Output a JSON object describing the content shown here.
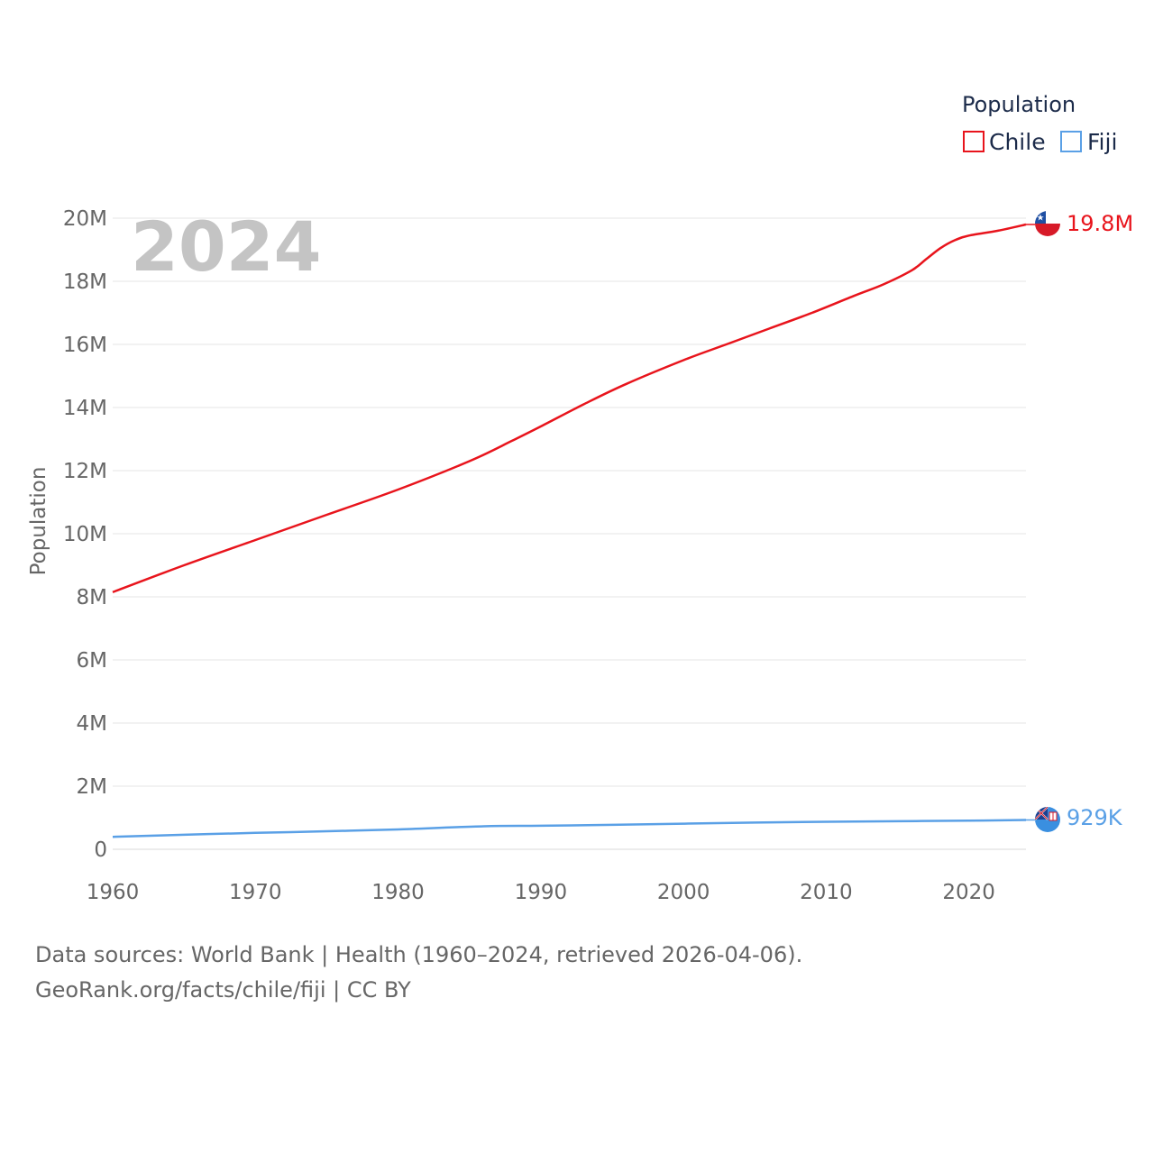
{
  "chart_data": {
    "type": "line",
    "title": "",
    "year_label": "2024",
    "ylabel": "Population",
    "xlabel": "",
    "xlim": [
      1960,
      2024
    ],
    "ylim": [
      0,
      20000000
    ],
    "x_ticks": [
      1960,
      1970,
      1980,
      1990,
      2000,
      2010,
      2020
    ],
    "y_ticks": [
      {
        "value": 0,
        "label": "0"
      },
      {
        "value": 2000000,
        "label": "2M"
      },
      {
        "value": 4000000,
        "label": "4M"
      },
      {
        "value": 6000000,
        "label": "6M"
      },
      {
        "value": 8000000,
        "label": "8M"
      },
      {
        "value": 10000000,
        "label": "10M"
      },
      {
        "value": 12000000,
        "label": "12M"
      },
      {
        "value": 14000000,
        "label": "14M"
      },
      {
        "value": 16000000,
        "label": "16M"
      },
      {
        "value": 18000000,
        "label": "18M"
      },
      {
        "value": 20000000,
        "label": "20M"
      }
    ],
    "grid": true,
    "legend": {
      "title": "Population",
      "position": "top-right"
    },
    "series": [
      {
        "name": "Chile",
        "color": "#e8141c",
        "end_label": "19.8M",
        "x": [
          1960,
          1965,
          1970,
          1975,
          1980,
          1985,
          1988,
          1990,
          1993,
          1996,
          2000,
          2003,
          2006,
          2009,
          2012,
          2014,
          2016,
          2017,
          2018,
          2019,
          2020,
          2022,
          2024
        ],
        "values": [
          8150000,
          9000000,
          9800000,
          10600000,
          11400000,
          12300000,
          12950000,
          13400000,
          14100000,
          14750000,
          15500000,
          16000000,
          16500000,
          17000000,
          17550000,
          17900000,
          18350000,
          18700000,
          19050000,
          19300000,
          19450000,
          19600000,
          19800000
        ]
      },
      {
        "name": "Fiji",
        "color": "#5aa0e6",
        "end_label": "929K",
        "x": [
          1960,
          1965,
          1970,
          1975,
          1980,
          1986,
          1990,
          1995,
          2000,
          2005,
          2010,
          2015,
          2020,
          2024
        ],
        "values": [
          394000,
          460000,
          520000,
          570000,
          630000,
          730000,
          745000,
          775000,
          812000,
          845000,
          870000,
          890000,
          905000,
          929000
        ]
      }
    ]
  },
  "footer": {
    "sources": "Data sources: World Bank | Health (1960–2024, retrieved 2026-04-06).",
    "credit": "GeoRank.org/facts/chile/fiji | CC BY"
  }
}
